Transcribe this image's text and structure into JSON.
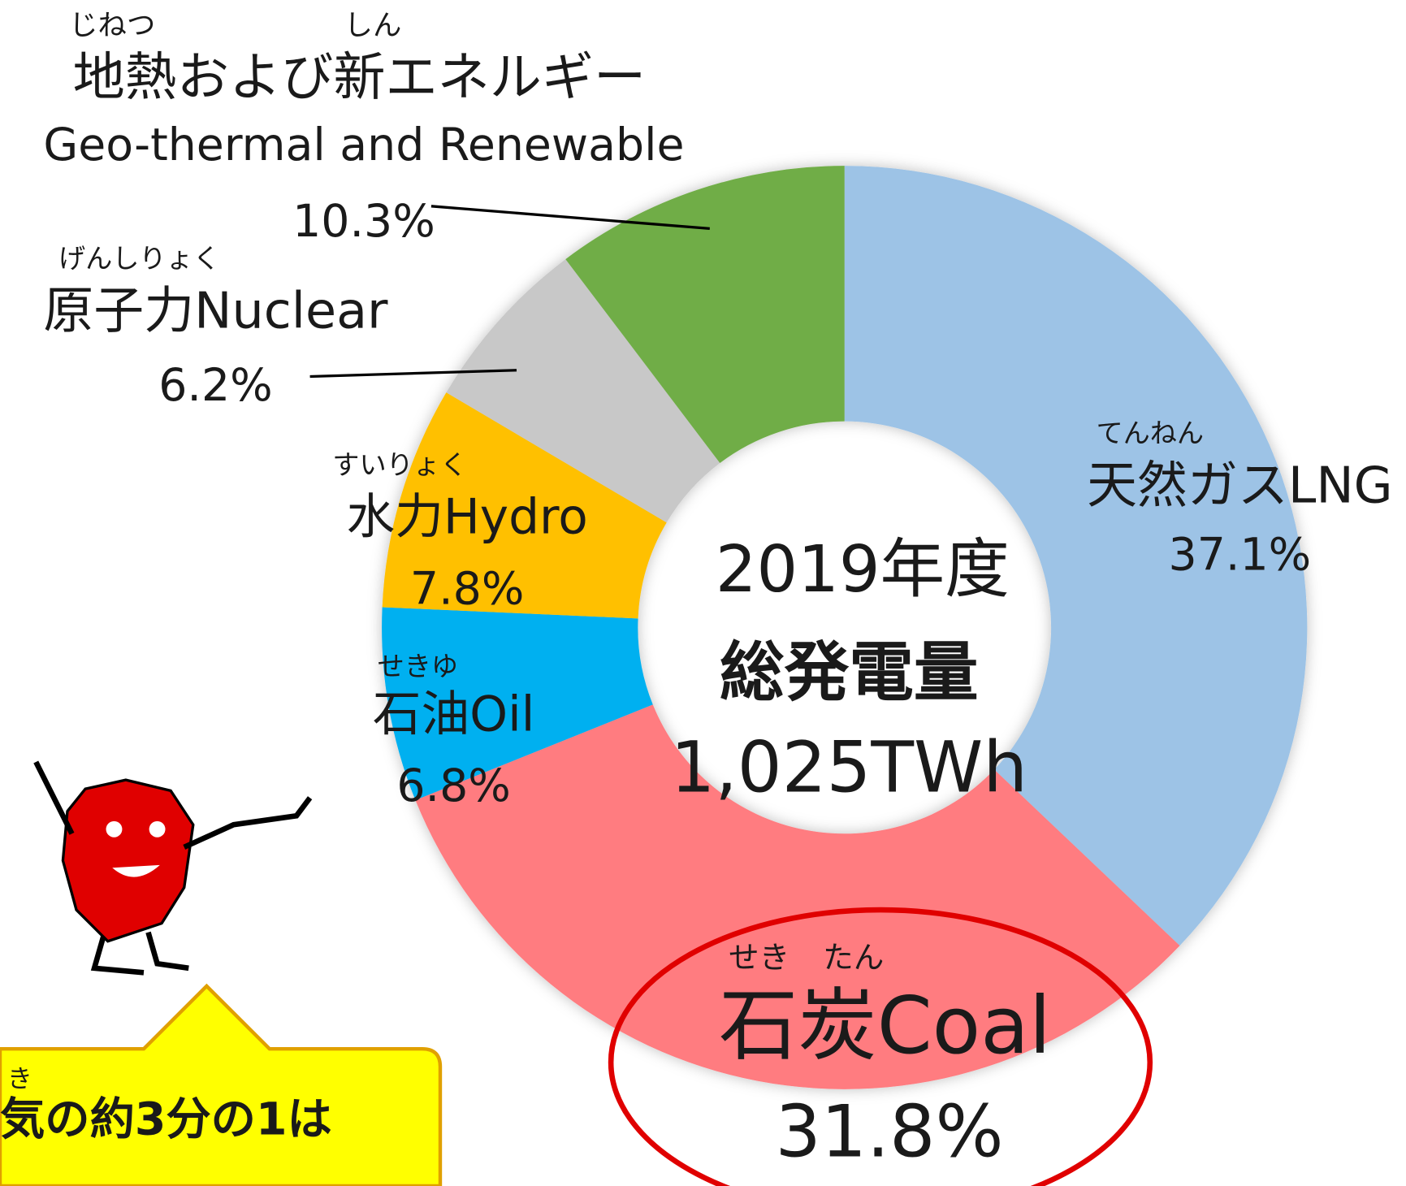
{
  "chart_data": {
    "type": "donut",
    "center_text": [
      "2019年度",
      "総発電量",
      "1,025TWh"
    ],
    "categories": [
      "天然ガスLNG",
      "石炭Coal",
      "石油Oil",
      "水力Hydro",
      "原子力Nuclear",
      "地熱および新エネルギー"
    ],
    "readings": [
      [
        "てんねん"
      ],
      [
        "せき",
        "たん"
      ],
      [
        "せきゆ"
      ],
      [
        "すいりょく"
      ],
      [
        "げんしりょく"
      ],
      [
        "じねつ",
        "しん"
      ]
    ],
    "annotations": [
      "Geo-thermal and Renewable"
    ],
    "values": [
      37.1,
      31.8,
      6.8,
      7.8,
      6.2,
      10.3
    ],
    "value_labels": [
      "37.1%",
      "31.8%",
      "6.8%",
      "7.8%",
      "6.2%",
      "10.3%"
    ],
    "colors": [
      "#9dc3e6",
      "#ff7c80",
      "#00b0f0",
      "#ffc000",
      "#c8c8c8",
      "#70ad47"
    ],
    "callout": {
      "reading": "き",
      "text": "気の約3分の1は"
    }
  }
}
